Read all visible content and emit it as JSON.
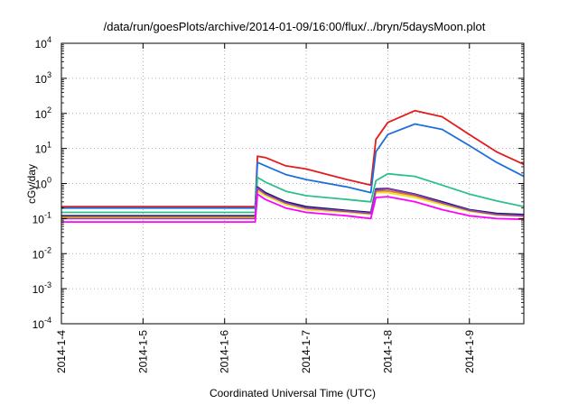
{
  "chart_data": {
    "type": "line",
    "title": "/data/run/goesPlots/archive/2014-01-09/16:00/flux/../bryn/5daysMoon.plot",
    "xlabel": "Coordinated Universal Time (UTC)",
    "ylabel": "cGy/day",
    "y_scale": "log",
    "ylim_exponents": [
      -4,
      4
    ],
    "y_ticks": [
      {
        "base": "10",
        "exp": "-4"
      },
      {
        "base": "10",
        "exp": "-3"
      },
      {
        "base": "10",
        "exp": "-2"
      },
      {
        "base": "10",
        "exp": "-1"
      },
      {
        "base": "10",
        "exp": "0"
      },
      {
        "base": "10",
        "exp": "1"
      },
      {
        "base": "10",
        "exp": "2"
      },
      {
        "base": "10",
        "exp": "3"
      },
      {
        "base": "10",
        "exp": "4"
      }
    ],
    "xlim": [
      "2014-01-04T00:00",
      "2014-01-09T16:00"
    ],
    "x_ticks": [
      "2014-1-4",
      "2014-1-5",
      "2014-1-6",
      "2014-1-7",
      "2014-1-8",
      "2014-1-9"
    ],
    "grid": true,
    "series": [
      {
        "color": "#e41a1c",
        "points": [
          [
            "2014-01-04T00:00",
            0.22
          ],
          [
            "2014-01-05T00:00",
            0.22
          ],
          [
            "2014-01-06T00:00",
            0.22
          ],
          [
            "2014-01-06T09:00",
            0.22
          ],
          [
            "2014-01-06T09:40",
            6.0
          ],
          [
            "2014-01-06T12:00",
            5.5
          ],
          [
            "2014-01-06T18:00",
            3.2
          ],
          [
            "2014-01-07T00:00",
            2.6
          ],
          [
            "2014-01-07T12:00",
            1.3
          ],
          [
            "2014-01-07T19:00",
            0.9
          ],
          [
            "2014-01-07T20:30",
            18
          ],
          [
            "2014-01-08T00:00",
            55
          ],
          [
            "2014-01-08T08:00",
            120
          ],
          [
            "2014-01-08T16:00",
            80
          ],
          [
            "2014-01-09T00:00",
            25
          ],
          [
            "2014-01-09T08:00",
            8
          ],
          [
            "2014-01-09T16:00",
            3.5
          ]
        ]
      },
      {
        "color": "#1e6fdc",
        "points": [
          [
            "2014-01-04T00:00",
            0.2
          ],
          [
            "2014-01-05T00:00",
            0.2
          ],
          [
            "2014-01-06T00:00",
            0.2
          ],
          [
            "2014-01-06T09:00",
            0.2
          ],
          [
            "2014-01-06T09:40",
            4.0
          ],
          [
            "2014-01-06T12:00",
            3.2
          ],
          [
            "2014-01-06T18:00",
            1.8
          ],
          [
            "2014-01-07T00:00",
            1.3
          ],
          [
            "2014-01-07T12:00",
            0.8
          ],
          [
            "2014-01-07T19:00",
            0.55
          ],
          [
            "2014-01-07T20:30",
            8
          ],
          [
            "2014-01-08T00:00",
            25
          ],
          [
            "2014-01-08T08:00",
            50
          ],
          [
            "2014-01-08T16:00",
            35
          ],
          [
            "2014-01-09T00:00",
            12
          ],
          [
            "2014-01-09T08:00",
            4
          ],
          [
            "2014-01-09T16:00",
            1.6
          ]
        ]
      },
      {
        "color": "#2ebf8f",
        "points": [
          [
            "2014-01-04T00:00",
            0.15
          ],
          [
            "2014-01-05T00:00",
            0.15
          ],
          [
            "2014-01-06T00:00",
            0.15
          ],
          [
            "2014-01-06T09:00",
            0.15
          ],
          [
            "2014-01-06T09:40",
            1.5
          ],
          [
            "2014-01-06T12:00",
            1.1
          ],
          [
            "2014-01-06T18:00",
            0.6
          ],
          [
            "2014-01-07T00:00",
            0.45
          ],
          [
            "2014-01-07T12:00",
            0.35
          ],
          [
            "2014-01-07T19:00",
            0.3
          ],
          [
            "2014-01-07T20:30",
            1.2
          ],
          [
            "2014-01-08T00:00",
            1.9
          ],
          [
            "2014-01-08T08:00",
            1.6
          ],
          [
            "2014-01-08T16:00",
            0.9
          ],
          [
            "2014-01-09T00:00",
            0.5
          ],
          [
            "2014-01-09T08:00",
            0.32
          ],
          [
            "2014-01-09T16:00",
            0.22
          ]
        ]
      },
      {
        "color": "#1a1a6a",
        "points": [
          [
            "2014-01-04T00:00",
            0.12
          ],
          [
            "2014-01-05T00:00",
            0.12
          ],
          [
            "2014-01-06T00:00",
            0.12
          ],
          [
            "2014-01-06T09:00",
            0.12
          ],
          [
            "2014-01-06T09:40",
            0.8
          ],
          [
            "2014-01-06T12:00",
            0.55
          ],
          [
            "2014-01-06T18:00",
            0.3
          ],
          [
            "2014-01-07T00:00",
            0.22
          ],
          [
            "2014-01-07T12:00",
            0.17
          ],
          [
            "2014-01-07T19:00",
            0.15
          ],
          [
            "2014-01-07T20:30",
            0.7
          ],
          [
            "2014-01-08T00:00",
            0.72
          ],
          [
            "2014-01-08T08:00",
            0.5
          ],
          [
            "2014-01-08T16:00",
            0.3
          ],
          [
            "2014-01-09T00:00",
            0.18
          ],
          [
            "2014-01-09T08:00",
            0.14
          ],
          [
            "2014-01-09T16:00",
            0.13
          ]
        ]
      },
      {
        "color": "#e07b1a",
        "points": [
          [
            "2014-01-04T00:00",
            0.11
          ],
          [
            "2014-01-05T00:00",
            0.11
          ],
          [
            "2014-01-06T00:00",
            0.11
          ],
          [
            "2014-01-06T09:00",
            0.11
          ],
          [
            "2014-01-06T09:40",
            0.7
          ],
          [
            "2014-01-06T12:00",
            0.5
          ],
          [
            "2014-01-06T18:00",
            0.27
          ],
          [
            "2014-01-07T00:00",
            0.2
          ],
          [
            "2014-01-07T12:00",
            0.16
          ],
          [
            "2014-01-07T19:00",
            0.14
          ],
          [
            "2014-01-07T20:30",
            0.6
          ],
          [
            "2014-01-08T00:00",
            0.62
          ],
          [
            "2014-01-08T08:00",
            0.45
          ],
          [
            "2014-01-08T16:00",
            0.27
          ],
          [
            "2014-01-09T00:00",
            0.17
          ],
          [
            "2014-01-09T08:00",
            0.13
          ],
          [
            "2014-01-09T16:00",
            0.12
          ]
        ]
      },
      {
        "color": "#f0e020",
        "points": [
          [
            "2014-01-04T00:00",
            0.105
          ],
          [
            "2014-01-05T00:00",
            0.105
          ],
          [
            "2014-01-06T00:00",
            0.105
          ],
          [
            "2014-01-06T09:00",
            0.105
          ],
          [
            "2014-01-06T09:40",
            0.6
          ],
          [
            "2014-01-06T12:00",
            0.45
          ],
          [
            "2014-01-06T18:00",
            0.25
          ],
          [
            "2014-01-07T00:00",
            0.18
          ],
          [
            "2014-01-07T12:00",
            0.15
          ],
          [
            "2014-01-07T19:00",
            0.13
          ],
          [
            "2014-01-07T20:30",
            0.55
          ],
          [
            "2014-01-08T00:00",
            0.55
          ],
          [
            "2014-01-08T08:00",
            0.4
          ],
          [
            "2014-01-08T16:00",
            0.25
          ],
          [
            "2014-01-09T00:00",
            0.16
          ],
          [
            "2014-01-09T08:00",
            0.125
          ],
          [
            "2014-01-09T16:00",
            0.115
          ]
        ]
      },
      {
        "color": "#9040c0",
        "points": [
          [
            "2014-01-04T00:00",
            0.1
          ],
          [
            "2014-01-05T00:00",
            0.1
          ],
          [
            "2014-01-06T00:00",
            0.1
          ],
          [
            "2014-01-06T09:00",
            0.1
          ],
          [
            "2014-01-06T09:40",
            0.75
          ],
          [
            "2014-01-06T12:00",
            0.5
          ],
          [
            "2014-01-06T18:00",
            0.28
          ],
          [
            "2014-01-07T00:00",
            0.2
          ],
          [
            "2014-01-07T12:00",
            0.16
          ],
          [
            "2014-01-07T19:00",
            0.14
          ],
          [
            "2014-01-07T20:30",
            0.65
          ],
          [
            "2014-01-08T00:00",
            0.7
          ],
          [
            "2014-01-08T08:00",
            0.48
          ],
          [
            "2014-01-08T16:00",
            0.28
          ],
          [
            "2014-01-09T00:00",
            0.17
          ],
          [
            "2014-01-09T08:00",
            0.13
          ],
          [
            "2014-01-09T16:00",
            0.12
          ]
        ]
      },
      {
        "color": "#ff00ff",
        "points": [
          [
            "2014-01-04T00:00",
            0.08
          ],
          [
            "2014-01-05T00:00",
            0.08
          ],
          [
            "2014-01-06T00:00",
            0.08
          ],
          [
            "2014-01-06T09:00",
            0.08
          ],
          [
            "2014-01-06T09:40",
            0.5
          ],
          [
            "2014-01-06T12:00",
            0.35
          ],
          [
            "2014-01-06T18:00",
            0.2
          ],
          [
            "2014-01-07T00:00",
            0.15
          ],
          [
            "2014-01-07T12:00",
            0.12
          ],
          [
            "2014-01-07T19:00",
            0.1
          ],
          [
            "2014-01-07T20:30",
            0.4
          ],
          [
            "2014-01-08T00:00",
            0.42
          ],
          [
            "2014-01-08T08:00",
            0.3
          ],
          [
            "2014-01-08T16:00",
            0.18
          ],
          [
            "2014-01-09T00:00",
            0.12
          ],
          [
            "2014-01-09T08:00",
            0.1
          ],
          [
            "2014-01-09T16:00",
            0.095
          ]
        ]
      }
    ]
  }
}
